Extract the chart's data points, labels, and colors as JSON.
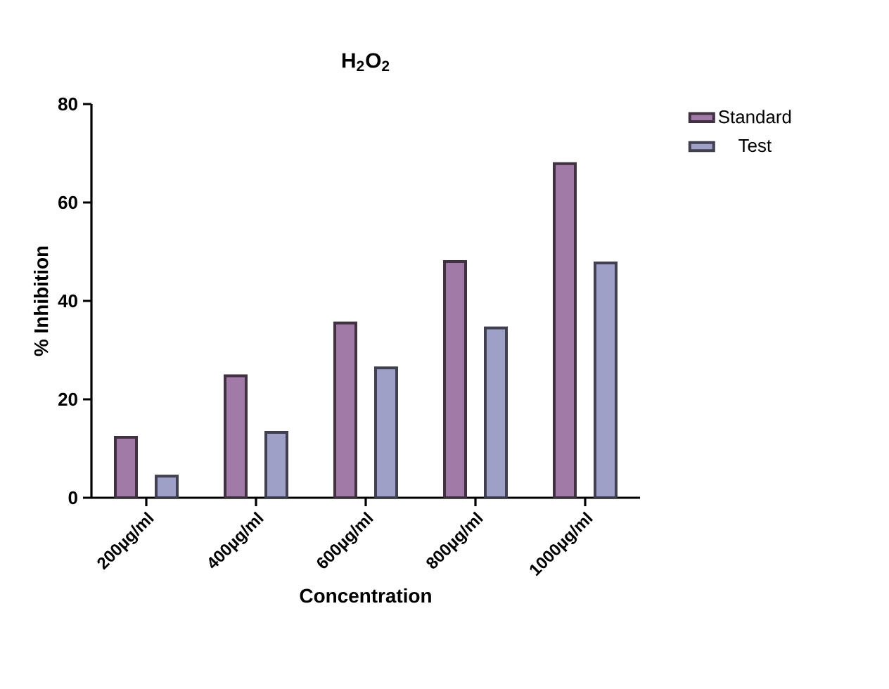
{
  "chart_data": {
    "type": "bar",
    "title": "H$_{2}$O$_{2}$",
    "xlabel": "Concentration",
    "ylabel": "% Inhibition",
    "categories": [
      "200µg/ml",
      "400µg/ml",
      "600µg/ml",
      "800µg/ml",
      "1000µg/ml"
    ],
    "series": [
      {
        "name": "Standard",
        "color": "#a27aa8",
        "values": [
          12.3,
          24.8,
          35.5,
          48.0,
          67.9
        ]
      },
      {
        "name": "Test",
        "color": "#9fa0c8",
        "values": [
          4.4,
          13.3,
          26.4,
          34.5,
          47.7
        ]
      }
    ],
    "ylim": [
      0,
      80
    ],
    "yticks": [
      0,
      20,
      40,
      60,
      80
    ],
    "legend": "top right"
  }
}
